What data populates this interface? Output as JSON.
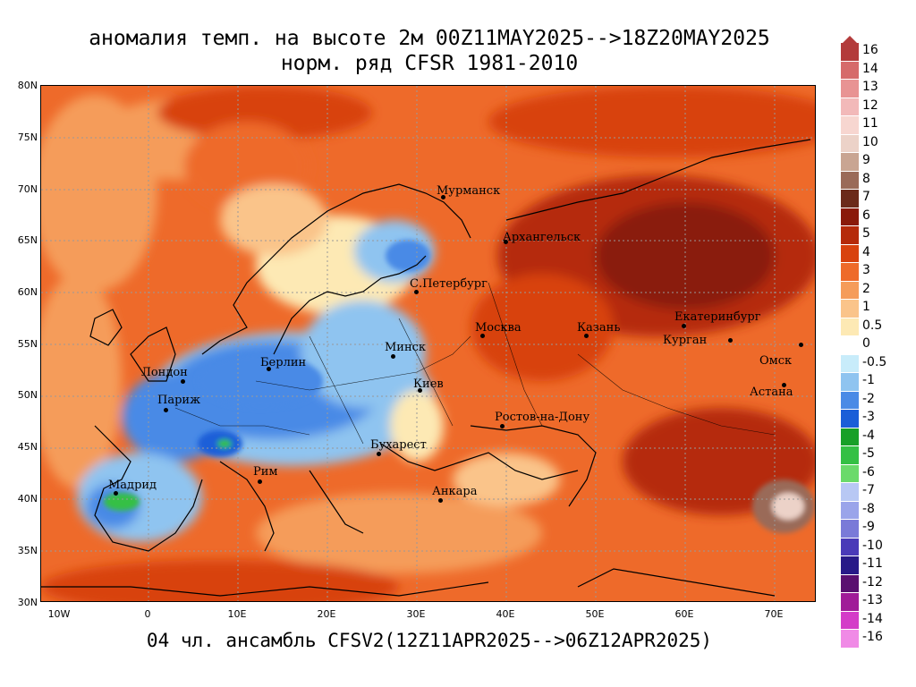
{
  "title_line1": "аномалия темп. на высоте 2м 00Z11MAY2025-->18Z20MAY2025",
  "title_line2": "норм. ряд CFSR 1981-2010",
  "footer": "04 чл. ансамбль CFSV2(12Z11APR2025-->06Z12APR2025)",
  "lat_labels": [
    "80N",
    "75N",
    "70N",
    "65N",
    "60N",
    "55N",
    "50N",
    "45N",
    "40N",
    "35N",
    "30N"
  ],
  "lon_labels": [
    "10W",
    "0",
    "10E",
    "20E",
    "30E",
    "40E",
    "50E",
    "60E",
    "70E"
  ],
  "cities": [
    {
      "name": "Мурманск"
    },
    {
      "name": "Архангельск"
    },
    {
      "name": "С.Петербург"
    },
    {
      "name": "Москва"
    },
    {
      "name": "Казань"
    },
    {
      "name": "Екатеринбург"
    },
    {
      "name": "Курган"
    },
    {
      "name": "Омск"
    },
    {
      "name": "Астана"
    },
    {
      "name": "Минск"
    },
    {
      "name": "Киев"
    },
    {
      "name": "Берлин"
    },
    {
      "name": "Лондон"
    },
    {
      "name": "Париж"
    },
    {
      "name": "Ростов-на-Дону"
    },
    {
      "name": "Бухарест"
    },
    {
      "name": "Рим"
    },
    {
      "name": "Мадрид"
    },
    {
      "name": "Анкара"
    }
  ],
  "colorbar": {
    "labels": [
      "16",
      "14",
      "13",
      "12",
      "11",
      "10",
      "9",
      "8",
      "7",
      "6",
      "5",
      "4",
      "3",
      "2",
      "1",
      "0.5",
      "0",
      "-0.5",
      "-1",
      "-2",
      "-3",
      "-4",
      "-5",
      "-6",
      "-7",
      "-8",
      "-9",
      "-10",
      "-11",
      "-12",
      "-13",
      "-14",
      "-16"
    ],
    "colors": [
      "#b33b3b",
      "#d66a6a",
      "#e89393",
      "#f2b9b9",
      "#f7d6d0",
      "#ecd2c8",
      "#c9a592",
      "#9a6a58",
      "#6b2a1a",
      "#8a1a0a",
      "#b52a0a",
      "#d8420e",
      "#ee6a2a",
      "#f59c5a",
      "#fac48a",
      "#fde9b4",
      "#ffffff",
      "#c8ecfa",
      "#8fc4f0",
      "#4a8ae6",
      "#1a5ed8",
      "#18a028",
      "#34c044",
      "#6ada6a",
      "#b8c8f4",
      "#9aa4ea",
      "#7a7ad8",
      "#4a3ab8",
      "#281a88",
      "#5a1070",
      "#a01c98",
      "#d43cc8",
      "#f08ae6"
    ]
  }
}
